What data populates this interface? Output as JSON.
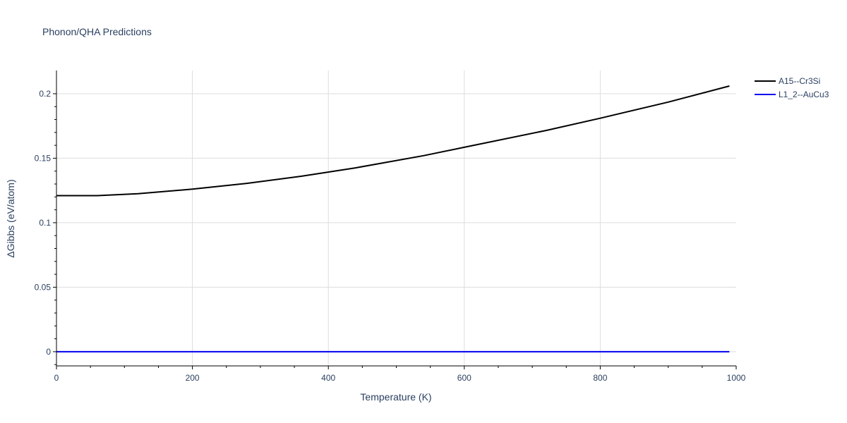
{
  "chart_data": {
    "type": "line",
    "title": "Phonon/QHA Predictions",
    "xlabel": "Temperature (K)",
    "ylabel": "ΔGibbs (eV/atom)",
    "xlim": [
      0,
      1000
    ],
    "ylim": [
      -0.011,
      0.218
    ],
    "x_ticks": [
      0,
      200,
      400,
      600,
      800,
      1000
    ],
    "x_tick_labels": [
      "0",
      "200",
      "400",
      "600",
      "800",
      "1000"
    ],
    "y_ticks": [
      0,
      0.05,
      0.1,
      0.15,
      0.2
    ],
    "y_tick_labels": [
      "0",
      "0.05",
      "0.1",
      "0.15",
      "0.2"
    ],
    "grid": true,
    "legend_position": "top-right",
    "series": [
      {
        "name": "A15--Cr3Si",
        "color": "#000000",
        "x": [
          0,
          60,
          120,
          200,
          280,
          360,
          440,
          540,
          600,
          720,
          800,
          900,
          990
        ],
        "y": [
          0.121,
          0.121,
          0.1225,
          0.126,
          0.1305,
          0.136,
          0.1425,
          0.152,
          0.1585,
          0.1715,
          0.181,
          0.1935,
          0.206
        ]
      },
      {
        "name": "L1_2--AuCu3",
        "color": "#0000ee",
        "x": [
          0,
          990
        ],
        "y": [
          0,
          0
        ]
      }
    ]
  }
}
